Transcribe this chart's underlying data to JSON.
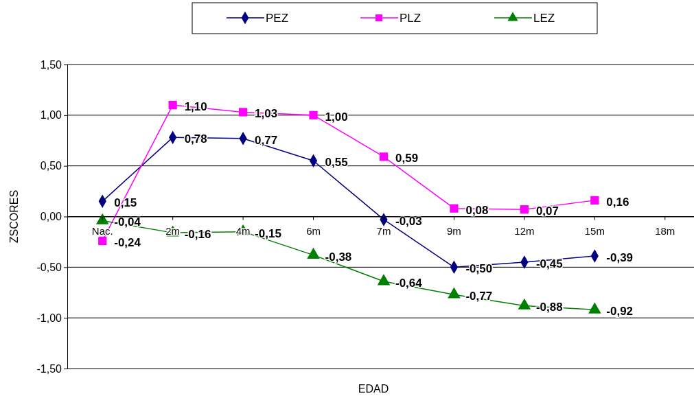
{
  "chart_data": {
    "type": "line",
    "xlabel": "EDAD",
    "ylabel": "ZSCORES",
    "categories": [
      "Nac.",
      "2m",
      "4m",
      "6m",
      "7m",
      "9m",
      "12m",
      "15m",
      "18m"
    ],
    "series": [
      {
        "name": "PEZ",
        "color": "#000080",
        "marker": "diamond",
        "values": [
          0.15,
          0.78,
          0.77,
          0.55,
          -0.03,
          -0.5,
          -0.45,
          -0.39,
          null
        ],
        "value_labels": [
          "0,15",
          "0,78",
          "0,77",
          "0,55",
          "-0,03",
          "-0,50",
          "-0,45",
          "-0,39",
          null
        ]
      },
      {
        "name": "PLZ",
        "color": "#ff00ff",
        "marker": "square",
        "values": [
          -0.24,
          1.1,
          1.03,
          1.0,
          0.59,
          0.08,
          0.07,
          0.16,
          null
        ],
        "value_labels": [
          "-0,24",
          "1,10",
          "1,03",
          "1,00",
          "0,59",
          "0,08",
          "0,07",
          "0,16",
          null
        ]
      },
      {
        "name": "LEZ",
        "color": "#008000",
        "marker": "triangle",
        "values": [
          -0.04,
          -0.16,
          -0.15,
          -0.38,
          -0.64,
          -0.77,
          -0.88,
          -0.92,
          null
        ],
        "value_labels": [
          "-0,04",
          "-0,16",
          "-0,15",
          "-0,38",
          "-0,64",
          "-0,77",
          "-0,88",
          "-0,92",
          null
        ]
      }
    ],
    "ylim": [
      -1.5,
      1.5
    ],
    "yticks": [
      {
        "value": -1.5,
        "label": "-1,50"
      },
      {
        "value": -1,
        "label": "-1,00"
      },
      {
        "value": -0.5,
        "label": "-0,50"
      },
      {
        "value": 0,
        "label": "0,00"
      },
      {
        "value": 0.5,
        "label": "0,50"
      },
      {
        "value": 1,
        "label": "1,00"
      },
      {
        "value": 1.5,
        "label": "1,50"
      }
    ],
    "grid": "y",
    "legend": "top",
    "line_style": "solid"
  }
}
